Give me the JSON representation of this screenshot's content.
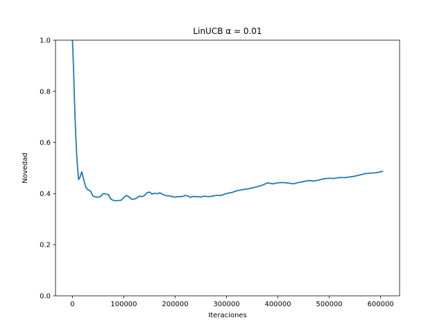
{
  "chart_data": {
    "type": "line",
    "title": "LinUCB α =  0.01",
    "xlabel": "Iteraciones",
    "ylabel": "Novedad",
    "xlim": [
      -33000,
      637000
    ],
    "ylim": [
      0,
      1.0
    ],
    "xticks": [
      0,
      100000,
      200000,
      300000,
      400000,
      500000,
      600000
    ],
    "xtick_labels": [
      "0",
      "100000",
      "200000",
      "300000",
      "400000",
      "500000",
      "600000"
    ],
    "yticks": [
      0.0,
      0.2,
      0.4,
      0.6,
      0.8,
      1.0
    ],
    "ytick_labels": [
      "0.0",
      "0.2",
      "0.4",
      "0.6",
      "0.8",
      "1.0"
    ],
    "grid": false,
    "series": [
      {
        "color": "#1f77b4",
        "x": [
          0,
          2000,
          4000,
          6000,
          8000,
          10000,
          12000,
          15000,
          18000,
          22000,
          26000,
          30000,
          35000,
          40000,
          45000,
          50000,
          55000,
          60000,
          65000,
          70000,
          75000,
          80000,
          85000,
          90000,
          95000,
          100000,
          105000,
          110000,
          115000,
          120000,
          125000,
          130000,
          135000,
          140000,
          145000,
          150000,
          155000,
          160000,
          165000,
          170000,
          175000,
          180000,
          185000,
          190000,
          195000,
          200000,
          205000,
          210000,
          215000,
          220000,
          225000,
          230000,
          235000,
          240000,
          245000,
          250000,
          255000,
          260000,
          265000,
          270000,
          275000,
          280000,
          285000,
          290000,
          295000,
          300000,
          310000,
          320000,
          330000,
          340000,
          350000,
          360000,
          370000,
          380000,
          390000,
          400000,
          410000,
          420000,
          430000,
          440000,
          450000,
          460000,
          470000,
          480000,
          490000,
          500000,
          510000,
          520000,
          530000,
          540000,
          550000,
          560000,
          570000,
          580000,
          590000,
          600000,
          605000
        ],
        "y": [
          1.0,
          0.9,
          0.76,
          0.65,
          0.56,
          0.5,
          0.455,
          0.465,
          0.485,
          0.455,
          0.425,
          0.415,
          0.41,
          0.39,
          0.387,
          0.386,
          0.389,
          0.4,
          0.398,
          0.396,
          0.378,
          0.373,
          0.372,
          0.373,
          0.374,
          0.385,
          0.393,
          0.387,
          0.378,
          0.378,
          0.382,
          0.39,
          0.388,
          0.392,
          0.403,
          0.406,
          0.398,
          0.401,
          0.399,
          0.403,
          0.398,
          0.393,
          0.391,
          0.391,
          0.388,
          0.386,
          0.388,
          0.388,
          0.389,
          0.393,
          0.39,
          0.385,
          0.389,
          0.388,
          0.388,
          0.386,
          0.39,
          0.389,
          0.388,
          0.389,
          0.391,
          0.393,
          0.393,
          0.393,
          0.397,
          0.4,
          0.404,
          0.411,
          0.415,
          0.418,
          0.422,
          0.427,
          0.433,
          0.442,
          0.438,
          0.442,
          0.443,
          0.441,
          0.438,
          0.443,
          0.447,
          0.451,
          0.449,
          0.453,
          0.458,
          0.46,
          0.459,
          0.463,
          0.462,
          0.465,
          0.468,
          0.473,
          0.478,
          0.48,
          0.481,
          0.485,
          0.488
        ]
      }
    ]
  }
}
